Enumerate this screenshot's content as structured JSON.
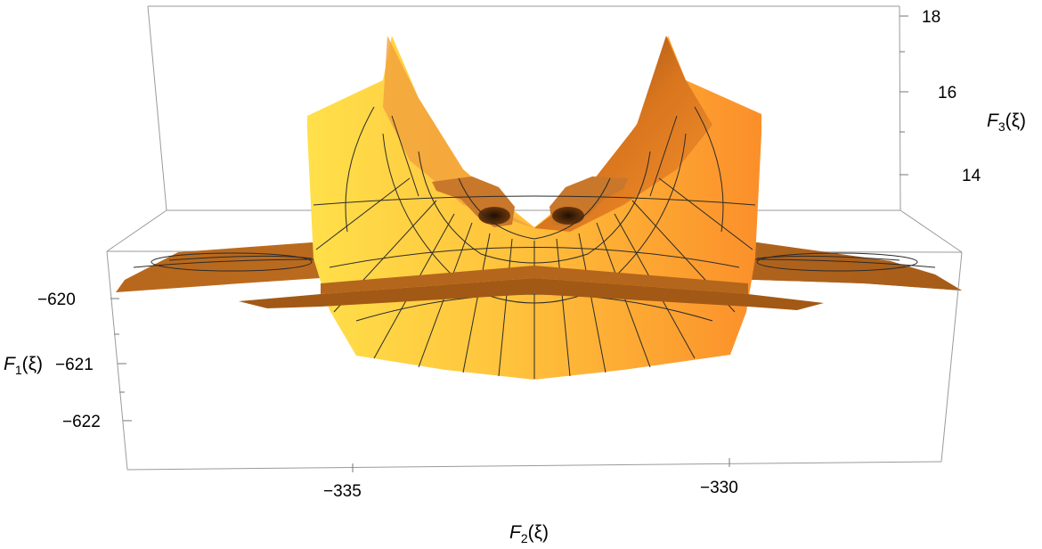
{
  "chart_data": {
    "type": "surface3d",
    "title": "",
    "xlabel": {
      "name": "F",
      "sub": "2",
      "arg": "(ξ)"
    },
    "ylabel": {
      "name": "F",
      "sub": "1",
      "arg": "(ξ)"
    },
    "zlabel": {
      "name": "F",
      "sub": "3",
      "arg": "(ξ)"
    },
    "x_ticks": [
      "−335",
      "−330"
    ],
    "y_ticks": [
      "−620",
      "−621",
      "−622"
    ],
    "z_ticks": [
      "18",
      "16",
      "14"
    ],
    "xlim": [
      -338,
      -327
    ],
    "ylim": [
      -622.7,
      -619.3
    ],
    "zlim": [
      12.3,
      18.2
    ],
    "surface_color": "#f6a52f",
    "surface_dark": "#8a4e12",
    "mesh_color": "#2b2b2b",
    "box_color": "#9a9a9a"
  }
}
